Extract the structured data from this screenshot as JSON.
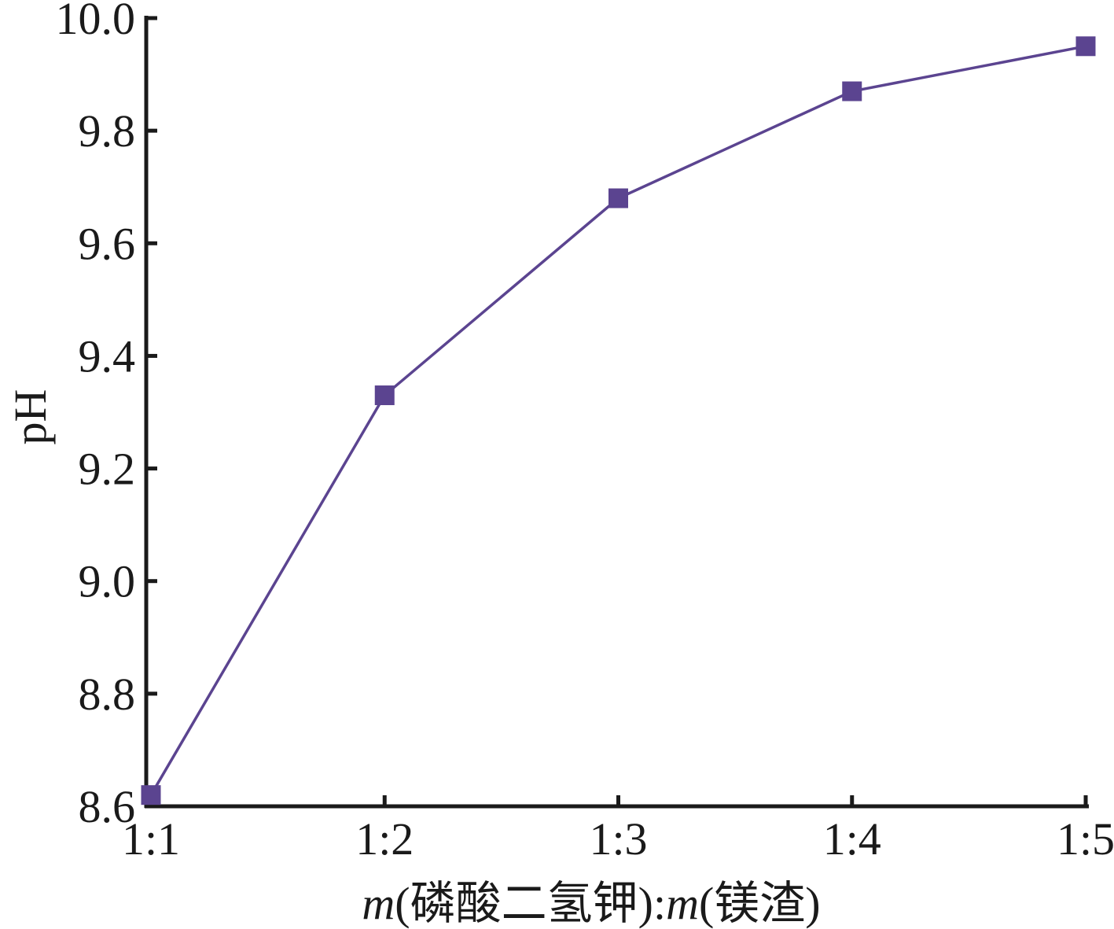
{
  "colors": {
    "series": "#5b4490",
    "axis": "#1a1a1a",
    "background": "#ffffff"
  },
  "chart_data": {
    "type": "line",
    "title": "",
    "x": [
      "1:1",
      "1:2",
      "1:3",
      "1:4",
      "1:5"
    ],
    "series": [
      {
        "values": [
          8.62,
          9.33,
          9.68,
          9.87,
          9.95
        ],
        "marker": "square"
      }
    ],
    "xlabel": {
      "var1": "m",
      "text1": "(磷酸二氢钾)",
      "sep": ":",
      "var2": "m",
      "text2": "(镁渣)"
    },
    "ylabel": "pH",
    "ylim": [
      8.6,
      10.0
    ],
    "yticks": [
      "8.6",
      "8.8",
      "9.0",
      "9.2",
      "9.4",
      "9.6",
      "9.8",
      "10.0"
    ],
    "grid": false,
    "legend": "none"
  }
}
